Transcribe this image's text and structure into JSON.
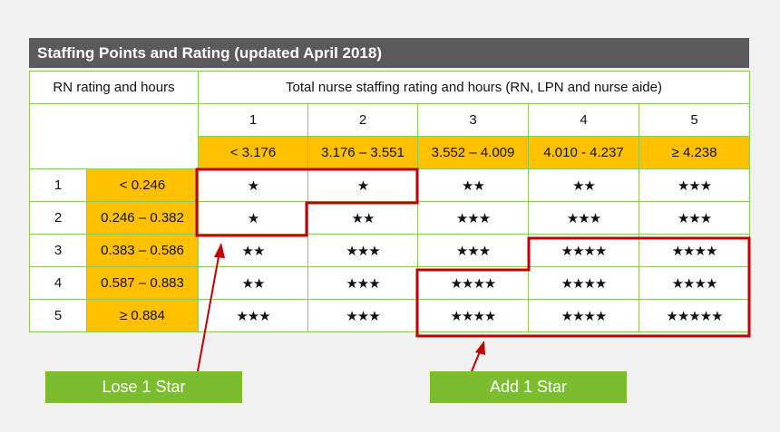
{
  "title": "Staffing Points and Rating (updated April 2018)",
  "rn_header": "RN rating and hours",
  "total_header": "Total nurse staffing rating and hours (RN, LPN and nurse aide)",
  "total_columns": [
    {
      "rating": "1",
      "range": "< 3.176"
    },
    {
      "rating": "2",
      "range": "3.176 – 3.551"
    },
    {
      "rating": "3",
      "range": "3.552 – 4.009"
    },
    {
      "rating": "4",
      "range": "4.010 - 4.237"
    },
    {
      "rating": "5",
      "range": "≥ 4.238"
    }
  ],
  "rn_rows": [
    {
      "rating": "1",
      "range": "< 0.246",
      "stars": [
        "★",
        "★",
        "★★",
        "★★",
        "★★★"
      ]
    },
    {
      "rating": "2",
      "range": "0.246 – 0.382",
      "stars": [
        "★",
        "★★",
        "★★★",
        "★★★",
        "★★★"
      ]
    },
    {
      "rating": "3",
      "range": "0.383 – 0.586",
      "stars": [
        "★★",
        "★★★",
        "★★★",
        "★★★★",
        "★★★★"
      ]
    },
    {
      "rating": "4",
      "range": "0.587 – 0.883",
      "stars": [
        "★★",
        "★★★",
        "★★★★",
        "★★★★",
        "★★★★"
      ]
    },
    {
      "rating": "5",
      "range": "≥ 0.884",
      "stars": [
        "★★★",
        "★★★",
        "★★★★",
        "★★★★",
        "★★★★★"
      ]
    }
  ],
  "callouts": {
    "lose": "Lose 1 Star",
    "add": "Add 1 Star"
  },
  "colors": {
    "title_bg": "#5a5a5a",
    "grid_border": "#8fc95a",
    "range_fill": "#ffc000",
    "highlight_outline": "#c00000",
    "callout_bg": "#7bbd2f"
  }
}
